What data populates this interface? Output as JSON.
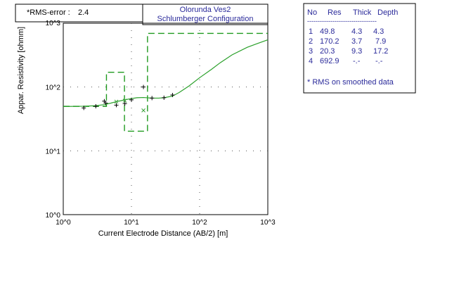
{
  "rms_box": {
    "label": "*RMS-error :",
    "value": "2.4"
  },
  "title": {
    "line1": "Olorunda Ves2",
    "line2": "Schlumberger Configuration"
  },
  "colors": {
    "title": "#2a2a9a",
    "model": "#1f9a1f",
    "curve": "#2aa02a",
    "points": "#000000",
    "smoothed": "#3aa03a",
    "table_text": "#2a2a9a"
  },
  "table": {
    "headers": [
      "No",
      "Res",
      "Thick",
      "Depth"
    ],
    "separator": "---------------------------------",
    "rows": [
      {
        "no": "1",
        "res": "49.8",
        "thick": "4.3",
        "depth": "4.3"
      },
      {
        "no": "2",
        "res": "170.2",
        "thick": "3.7",
        "depth": "7.9"
      },
      {
        "no": "3",
        "res": "20.3",
        "thick": "9.3",
        "depth": "17.2"
      },
      {
        "no": "4",
        "res": "692.9",
        "thick": "-.-",
        "depth": "-.-"
      }
    ],
    "note": "* RMS on smoothed data"
  },
  "chart_data": {
    "type": "scatter",
    "xlabel": "Current Electrode Distance (AB/2) [m]",
    "ylabel": "Appar. Resistivity [ohmm]",
    "x_scale": "log",
    "y_scale": "log",
    "xlim": [
      1,
      1000
    ],
    "ylim": [
      1,
      1000
    ],
    "x_ticks": [
      1,
      10,
      100,
      1000
    ],
    "x_tick_labels": [
      "10^0",
      "10^1",
      "10^2",
      "10^3"
    ],
    "y_ticks": [
      1,
      10,
      100,
      1000
    ],
    "y_tick_labels": [
      "10^0",
      "10^1",
      "10^2",
      "10^3"
    ],
    "grid": "dotted",
    "measured": {
      "marker": "+",
      "points": [
        [
          2,
          47
        ],
        [
          3,
          50
        ],
        [
          4,
          60
        ],
        [
          4.2,
          56
        ],
        [
          6,
          52
        ],
        [
          8,
          55
        ],
        [
          10,
          63
        ],
        [
          15,
          100
        ],
        [
          20,
          67
        ],
        [
          30,
          68
        ],
        [
          40,
          75
        ]
      ]
    },
    "smoothed": {
      "marker": "x",
      "points": [
        [
          6,
          59
        ],
        [
          8,
          61
        ],
        [
          15,
          43
        ]
      ]
    },
    "calculated_curve": {
      "x": [
        1,
        2,
        3,
        4,
        5,
        6,
        7,
        8,
        10,
        12,
        15,
        20,
        25,
        30,
        40,
        50,
        70,
        100,
        150,
        200,
        300,
        500,
        700,
        1000
      ],
      "y": [
        49.5,
        50,
        51,
        53,
        56,
        59,
        61,
        63,
        66,
        68,
        68.5,
        67,
        67,
        68,
        72,
        82,
        104,
        140,
        190,
        240,
        320,
        420,
        480,
        550
      ]
    },
    "model": {
      "steps": [
        {
          "x": [
            1,
            4.3
          ],
          "y": [
            49.8,
            49.8
          ]
        },
        {
          "x": [
            4.3,
            7.9
          ],
          "y": [
            170.2,
            170.2
          ]
        },
        {
          "x": [
            7.9,
            17.2
          ],
          "y": [
            20.3,
            20.3
          ]
        },
        {
          "x": [
            17.2,
            1000
          ],
          "y": [
            692.9,
            692.9
          ]
        }
      ]
    }
  }
}
